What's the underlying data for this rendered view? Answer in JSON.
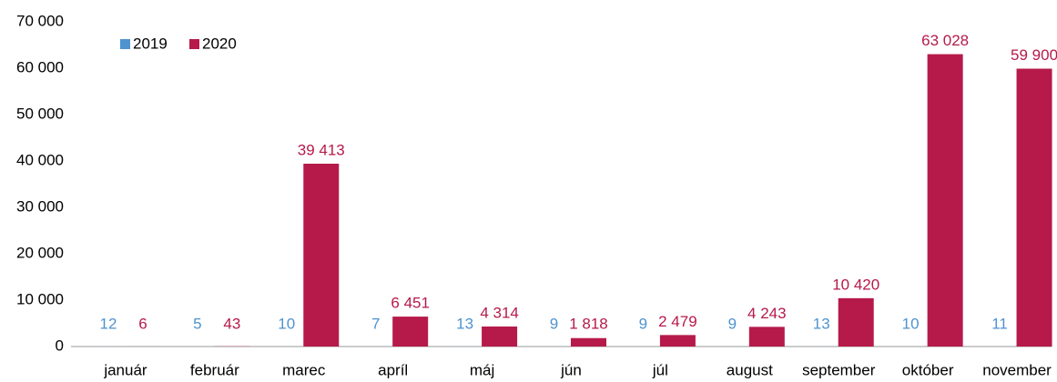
{
  "chart_data": {
    "type": "bar",
    "categories": [
      "január",
      "február",
      "marec",
      "apríl",
      "máj",
      "jún",
      "júl",
      "august",
      "september",
      "október",
      "november"
    ],
    "series": [
      {
        "name": "2019",
        "color": "#4f93cf",
        "values": [
          12,
          5,
          10,
          7,
          13,
          9,
          9,
          9,
          13,
          10,
          11
        ]
      },
      {
        "name": "2020",
        "color": "#b61a4a",
        "values": [
          6,
          43,
          39413,
          6451,
          4314,
          1818,
          2479,
          4243,
          10420,
          63028,
          59900
        ],
        "value_labels": [
          "6",
          "43",
          "39 413",
          "6 451",
          "4 314",
          "1 818",
          "2 479",
          "4 243",
          "10 420",
          "63 028",
          "59 900"
        ]
      }
    ],
    "ylim": [
      0,
      70000
    ],
    "yticks": [
      0,
      {
        "value": 10000,
        "label": "10 000"
      },
      {
        "value": 20000,
        "label": "20 000"
      },
      {
        "value": 30000,
        "label": "30 000"
      },
      {
        "value": 40000,
        "label": "40 000"
      },
      {
        "value": 50000,
        "label": "50 000"
      },
      {
        "value": 60000,
        "label": "60 000"
      },
      {
        "value": 70000,
        "label": "70 000"
      }
    ],
    "legend": "top-left"
  }
}
